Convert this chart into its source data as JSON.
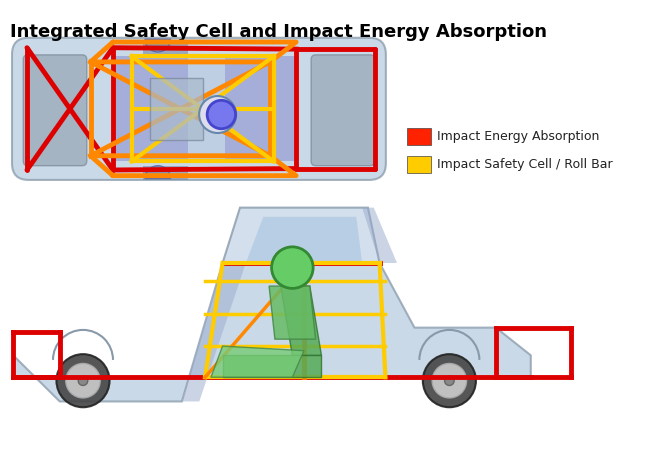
{
  "title": "Integrated Safety Cell and Impact Energy Absorption",
  "title_fontsize": 13,
  "title_bold": true,
  "bg_color": "#ffffff",
  "legend_items": [
    {
      "label": "Impact Energy Absorption",
      "color": "#ff2200"
    },
    {
      "label": "Impact Safety Cell / Roll Bar",
      "color": "#ffcc00"
    }
  ],
  "red": "#dd0000",
  "orange": "#ff8800",
  "yellow": "#ffcc00",
  "lw_red": 3.5,
  "lw_orange": 3.5,
  "lw_yellow": 3.0,
  "car_body_color": "#b8cde0",
  "car_edge_color": "#8899aa",
  "grey_panel_color": "#8090a0",
  "cabin_blue": "#8888cc",
  "cabin_light": "#aabbdd"
}
